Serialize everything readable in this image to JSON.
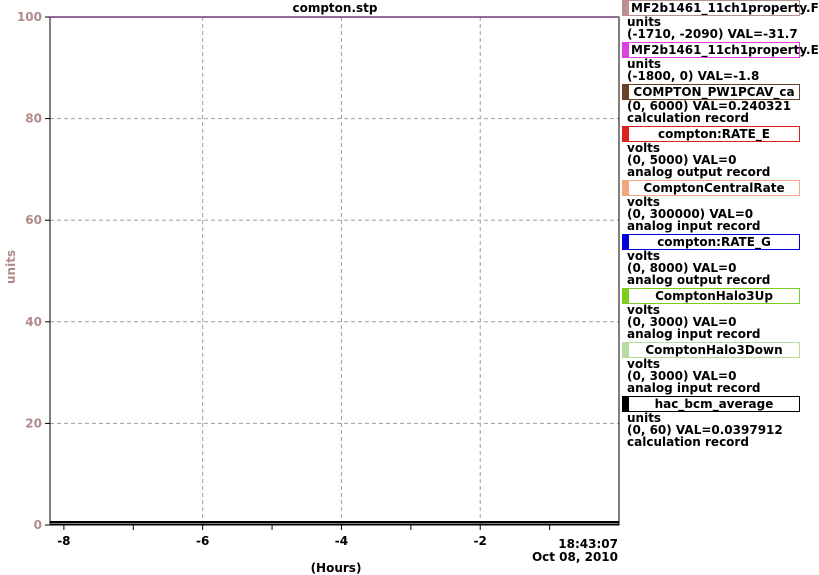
{
  "window": {
    "title": "compton.stp"
  },
  "axes": {
    "ylabel": "units",
    "xlabel": "(Hours)",
    "yticks": [
      "0",
      "20",
      "40",
      "60",
      "80",
      "100"
    ],
    "xticks": [
      "-8",
      "-6",
      "-4",
      "-2"
    ],
    "time": "18:43:07",
    "date": "Oct 08, 2010"
  },
  "colors": {
    "ytick": "#b08a8a",
    "grid": "#a0a0a0",
    "top_line": "#cc33cc"
  },
  "legend": [
    {
      "name": "MF2b1461_11ch1property.F",
      "align": "left",
      "color": "#bc8f8f",
      "lines": [
        "units",
        "(-1710, -2090) VAL=-31.7"
      ]
    },
    {
      "name": "MF2b1461_11ch1property.E",
      "align": "left",
      "color": "#e040e0",
      "lines": [
        "units",
        "(-1800, 0)  VAL=-1.8"
      ]
    },
    {
      "name": "COMPTON_PW1PCAV_ca",
      "align": "center",
      "color": "#6b4226",
      "lines": [
        "(0, 6000) VAL=0.240321",
        "calculation record"
      ]
    },
    {
      "name": "compton:RATE_E",
      "align": "center",
      "color": "#dd2222",
      "lines": [
        "volts",
        "(0, 5000)  VAL=0",
        "analog output record"
      ]
    },
    {
      "name": "ComptonCentralRate",
      "align": "center",
      "color": "#f4a582",
      "lines": [
        "volts",
        "(0, 300000) VAL=0",
        "analog input record"
      ]
    },
    {
      "name": "compton:RATE_G",
      "align": "center",
      "color": "#0000dd",
      "lines": [
        "volts",
        "(0, 8000)  VAL=0",
        "analog output record"
      ]
    },
    {
      "name": "ComptonHalo3Up",
      "align": "center",
      "color": "#7ccd22",
      "lines": [
        "volts",
        "(0, 3000)  VAL=0",
        "analog input record"
      ]
    },
    {
      "name": "ComptonHalo3Down",
      "align": "center",
      "color": "#b8dba0",
      "lines": [
        "volts",
        "(0, 3000)  VAL=0",
        "analog input record"
      ]
    },
    {
      "name": "hac_bcm_average",
      "align": "center",
      "color": "#000000",
      "lines": [
        "units",
        "(0, 60) VAL=0.0397912",
        "calculation record"
      ]
    }
  ]
}
